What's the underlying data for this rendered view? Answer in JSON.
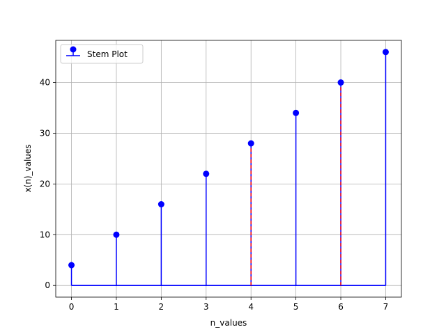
{
  "chart_data": {
    "type": "stem",
    "title": "",
    "xlabel": "n_values",
    "ylabel": "x(n)_values",
    "x": [
      0,
      1,
      2,
      3,
      4,
      5,
      6,
      7
    ],
    "values": [
      4,
      10,
      16,
      22,
      28,
      34,
      40,
      46
    ],
    "xlim": [
      -0.35,
      7.35
    ],
    "ylim": [
      -2.3,
      48.3
    ],
    "xticks": [
      "0",
      "1",
      "2",
      "3",
      "4",
      "5",
      "6",
      "7"
    ],
    "yticks": [
      "0",
      "10",
      "20",
      "30",
      "40"
    ],
    "grid": true,
    "legend": {
      "position": "top-left",
      "entries": [
        "Stem Plot"
      ]
    },
    "series_color": "#0000ff",
    "highlight_color": "#ff0000",
    "highlighted_x": [
      4,
      6
    ]
  }
}
